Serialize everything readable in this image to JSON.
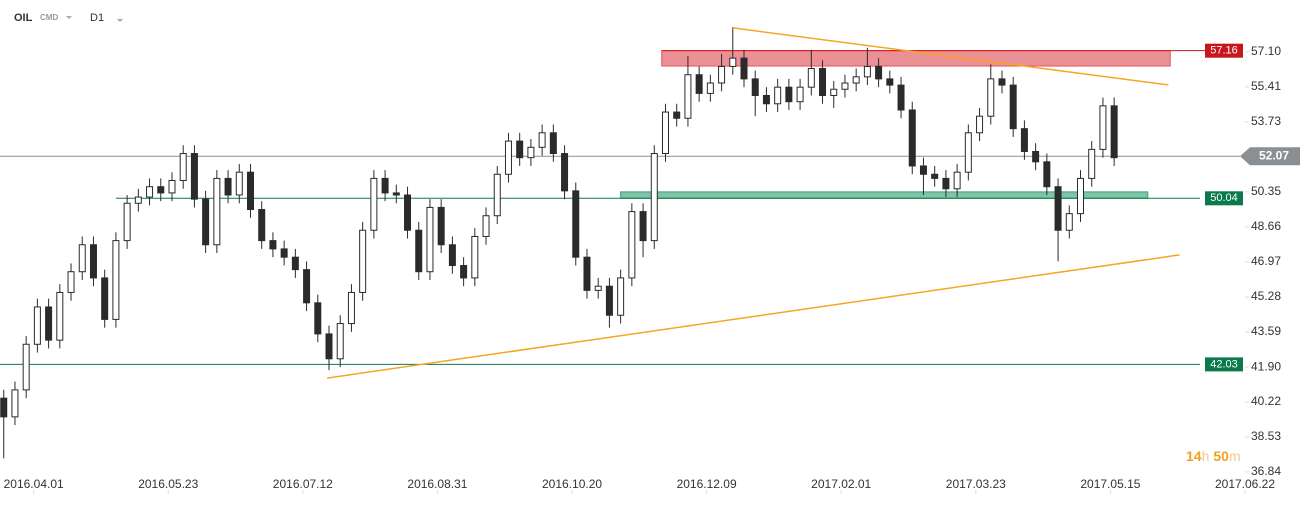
{
  "header": {
    "symbol": "OIL",
    "market": "CMD",
    "timeframe": "D1"
  },
  "countdown": {
    "hours": 14,
    "hours_unit": "h",
    "minutes": 50,
    "minutes_unit": "m"
  },
  "chart_data": {
    "type": "candlestick",
    "up_color": "#ffffff",
    "down_color": "#2b2b2b",
    "wick_color": "#2b2b2b",
    "xlim": [
      0,
      333
    ],
    "ylim": [
      36.84,
      58.64
    ],
    "xticks": [
      {
        "value": 9,
        "label": "2016.04.01"
      },
      {
        "value": 45,
        "label": "2016.05.23"
      },
      {
        "value": 81,
        "label": "2016.07.12"
      },
      {
        "value": 117,
        "label": "2016.08.31"
      },
      {
        "value": 153,
        "label": "2016.10.20"
      },
      {
        "value": 189,
        "label": "2016.12.09"
      },
      {
        "value": 225,
        "label": "2017.02.01"
      },
      {
        "value": 261,
        "label": "2017.03.23"
      },
      {
        "value": 297,
        "label": "2017.05.15"
      },
      {
        "value": 333,
        "label": "2017.06.22"
      }
    ],
    "yticks": [
      {
        "value": 57.1,
        "label": "57.10"
      },
      55.41,
      53.73,
      50.35,
      48.66,
      46.97,
      45.28,
      43.59,
      {
        "value": 41.9,
        "label": "41.90"
      },
      40.22,
      38.53,
      36.84
    ],
    "x": [
      1,
      4,
      7,
      10,
      13,
      16,
      19,
      22,
      25,
      28,
      31,
      34,
      37,
      40,
      43,
      46,
      49,
      52,
      55,
      58,
      61,
      64,
      67,
      70,
      73,
      76,
      79,
      82,
      85,
      88,
      91,
      94,
      97,
      100,
      103,
      106,
      109,
      112,
      115,
      118,
      121,
      124,
      127,
      130,
      133,
      136,
      139,
      142,
      145,
      148,
      151,
      154,
      157,
      160,
      163,
      166,
      169,
      172,
      175,
      178,
      181,
      184,
      187,
      190,
      193,
      196,
      199,
      202,
      205,
      208,
      211,
      214,
      217,
      220,
      223,
      226,
      229,
      232,
      235,
      238,
      241,
      244,
      247,
      250,
      253,
      256,
      259,
      262,
      265,
      268,
      271,
      274,
      277,
      280,
      283,
      286,
      289,
      292,
      295,
      298
    ],
    "open": [
      40.4,
      39.5,
      40.8,
      43.0,
      44.8,
      43.2,
      45.5,
      46.5,
      47.8,
      46.2,
      44.2,
      48.0,
      49.8,
      50.1,
      50.6,
      50.3,
      50.9,
      52.2,
      50.0,
      47.8,
      51.0,
      50.2,
      51.3,
      49.5,
      48.0,
      47.6,
      47.2,
      46.6,
      45.0,
      43.5,
      42.3,
      44.0,
      45.5,
      48.5,
      51.0,
      50.3,
      50.2,
      48.5,
      46.5,
      49.6,
      47.8,
      46.8,
      46.2,
      48.2,
      49.2,
      51.2,
      52.8,
      52.0,
      52.5,
      53.2,
      52.2,
      50.4,
      47.2,
      45.6,
      45.8,
      44.4,
      46.2,
      49.4,
      48.0,
      52.2,
      54.2,
      53.9,
      56.0,
      55.1,
      55.6,
      56.4,
      56.8,
      55.8,
      55.0,
      54.6,
      55.4,
      54.7,
      55.4,
      56.3,
      55.0,
      55.3,
      55.6,
      55.9,
      56.4,
      55.8,
      55.5,
      54.3,
      51.6,
      51.2,
      51.0,
      50.5,
      51.3,
      53.2,
      54.0,
      55.8,
      55.5,
      53.4,
      52.3,
      51.8,
      50.6,
      48.5,
      49.3,
      51.0,
      52.4,
      54.5
    ],
    "high": [
      40.8,
      41.2,
      43.4,
      45.2,
      45.2,
      45.9,
      46.9,
      48.2,
      48.2,
      46.6,
      48.4,
      50.2,
      50.5,
      51.0,
      51.0,
      51.3,
      52.6,
      52.6,
      50.4,
      51.4,
      51.4,
      51.7,
      51.7,
      49.9,
      48.4,
      48.0,
      47.6,
      47.0,
      45.4,
      43.9,
      44.4,
      45.9,
      48.9,
      51.4,
      51.4,
      50.7,
      50.6,
      48.9,
      50.0,
      50.0,
      48.2,
      47.2,
      48.6,
      49.6,
      51.6,
      53.2,
      53.2,
      52.9,
      53.6,
      53.6,
      52.6,
      50.8,
      47.6,
      46.2,
      46.2,
      46.6,
      49.8,
      49.8,
      52.6,
      54.6,
      54.6,
      56.9,
      56.4,
      56.0,
      57.0,
      58.3,
      57.2,
      56.2,
      55.4,
      55.8,
      55.8,
      55.8,
      57.2,
      56.7,
      55.7,
      56.0,
      56.3,
      57.3,
      56.8,
      56.2,
      55.9,
      54.7,
      52.0,
      51.6,
      51.4,
      51.7,
      53.6,
      54.4,
      56.5,
      56.2,
      55.9,
      53.8,
      52.7,
      52.2,
      51.0,
      49.7,
      51.4,
      52.8,
      54.9,
      54.9
    ],
    "low": [
      37.5,
      39.1,
      40.4,
      42.6,
      42.8,
      42.8,
      45.1,
      46.1,
      45.8,
      43.8,
      43.8,
      47.6,
      49.4,
      49.7,
      49.9,
      49.9,
      50.5,
      49.6,
      47.4,
      47.4,
      49.8,
      49.8,
      49.1,
      47.6,
      47.2,
      46.8,
      46.2,
      44.6,
      43.1,
      41.75,
      41.9,
      43.6,
      45.1,
      48.1,
      49.9,
      49.8,
      48.1,
      46.1,
      46.1,
      47.4,
      46.4,
      45.8,
      45.8,
      47.8,
      48.8,
      50.8,
      51.6,
      51.6,
      52.1,
      51.8,
      50.0,
      46.8,
      45.2,
      45.2,
      43.8,
      44.0,
      45.8,
      47.2,
      47.6,
      51.8,
      53.5,
      53.5,
      54.7,
      54.7,
      55.2,
      56.0,
      55.4,
      54.0,
      54.2,
      54.2,
      54.3,
      54.3,
      55.0,
      54.6,
      54.4,
      54.9,
      55.2,
      55.5,
      55.4,
      55.1,
      53.9,
      51.2,
      50.2,
      50.6,
      50.1,
      50.1,
      50.9,
      52.8,
      53.6,
      55.1,
      53.0,
      51.9,
      51.4,
      50.2,
      47.0,
      48.1,
      48.9,
      50.6,
      52.0,
      51.6
    ],
    "close": [
      39.5,
      40.8,
      43.0,
      44.8,
      43.2,
      45.5,
      46.5,
      47.8,
      46.2,
      44.2,
      48.0,
      49.8,
      50.1,
      50.6,
      50.3,
      50.9,
      52.2,
      50.0,
      47.8,
      51.0,
      50.2,
      51.3,
      49.5,
      48.0,
      47.6,
      47.2,
      46.6,
      45.0,
      43.5,
      42.3,
      44.0,
      45.5,
      48.5,
      51.0,
      50.3,
      50.2,
      48.5,
      46.5,
      49.6,
      47.8,
      46.8,
      46.2,
      48.2,
      49.2,
      51.2,
      52.8,
      52.0,
      52.5,
      53.2,
      52.2,
      50.4,
      47.2,
      45.6,
      45.8,
      44.4,
      46.2,
      49.4,
      48.0,
      52.2,
      54.2,
      53.9,
      56.0,
      55.1,
      55.6,
      56.4,
      56.8,
      55.8,
      55.0,
      54.6,
      55.4,
      54.7,
      55.4,
      56.3,
      55.0,
      55.3,
      55.6,
      55.9,
      56.4,
      55.8,
      55.5,
      54.3,
      51.6,
      51.2,
      51.0,
      50.5,
      51.3,
      53.2,
      54.0,
      55.8,
      55.5,
      53.4,
      52.3,
      51.8,
      50.6,
      48.5,
      49.3,
      51.0,
      52.4,
      54.5,
      52.0
    ],
    "zones": [
      {
        "x": [
          177,
          313
        ],
        "y": [
          56.42,
          57.16
        ],
        "color": "#e0545a"
      },
      {
        "x": [
          166,
          307
        ],
        "y": [
          50.04,
          50.35
        ],
        "color": "#3aa37a"
      }
    ],
    "trendlines": [
      {
        "x": [
          196,
          312.5
        ],
        "y": [
          58.26,
          55.51
        ],
        "color": "#f5a623"
      },
      {
        "x": [
          87.5,
          315.5
        ],
        "y": [
          41.37,
          47.31
        ],
        "color": "#f5a623"
      }
    ],
    "levels": [
      {
        "value": 57.16,
        "color": "#c8161d",
        "line": false,
        "from": 177
      },
      {
        "value": 52.07,
        "color": "#8a8f94",
        "line": true,
        "from": 0,
        "current": true
      },
      {
        "value": 50.04,
        "color": "#0b7a4b",
        "line": true,
        "from": 31
      },
      {
        "value": 42.03,
        "color": "#0b7a4b",
        "line": true,
        "from": 0
      }
    ]
  }
}
